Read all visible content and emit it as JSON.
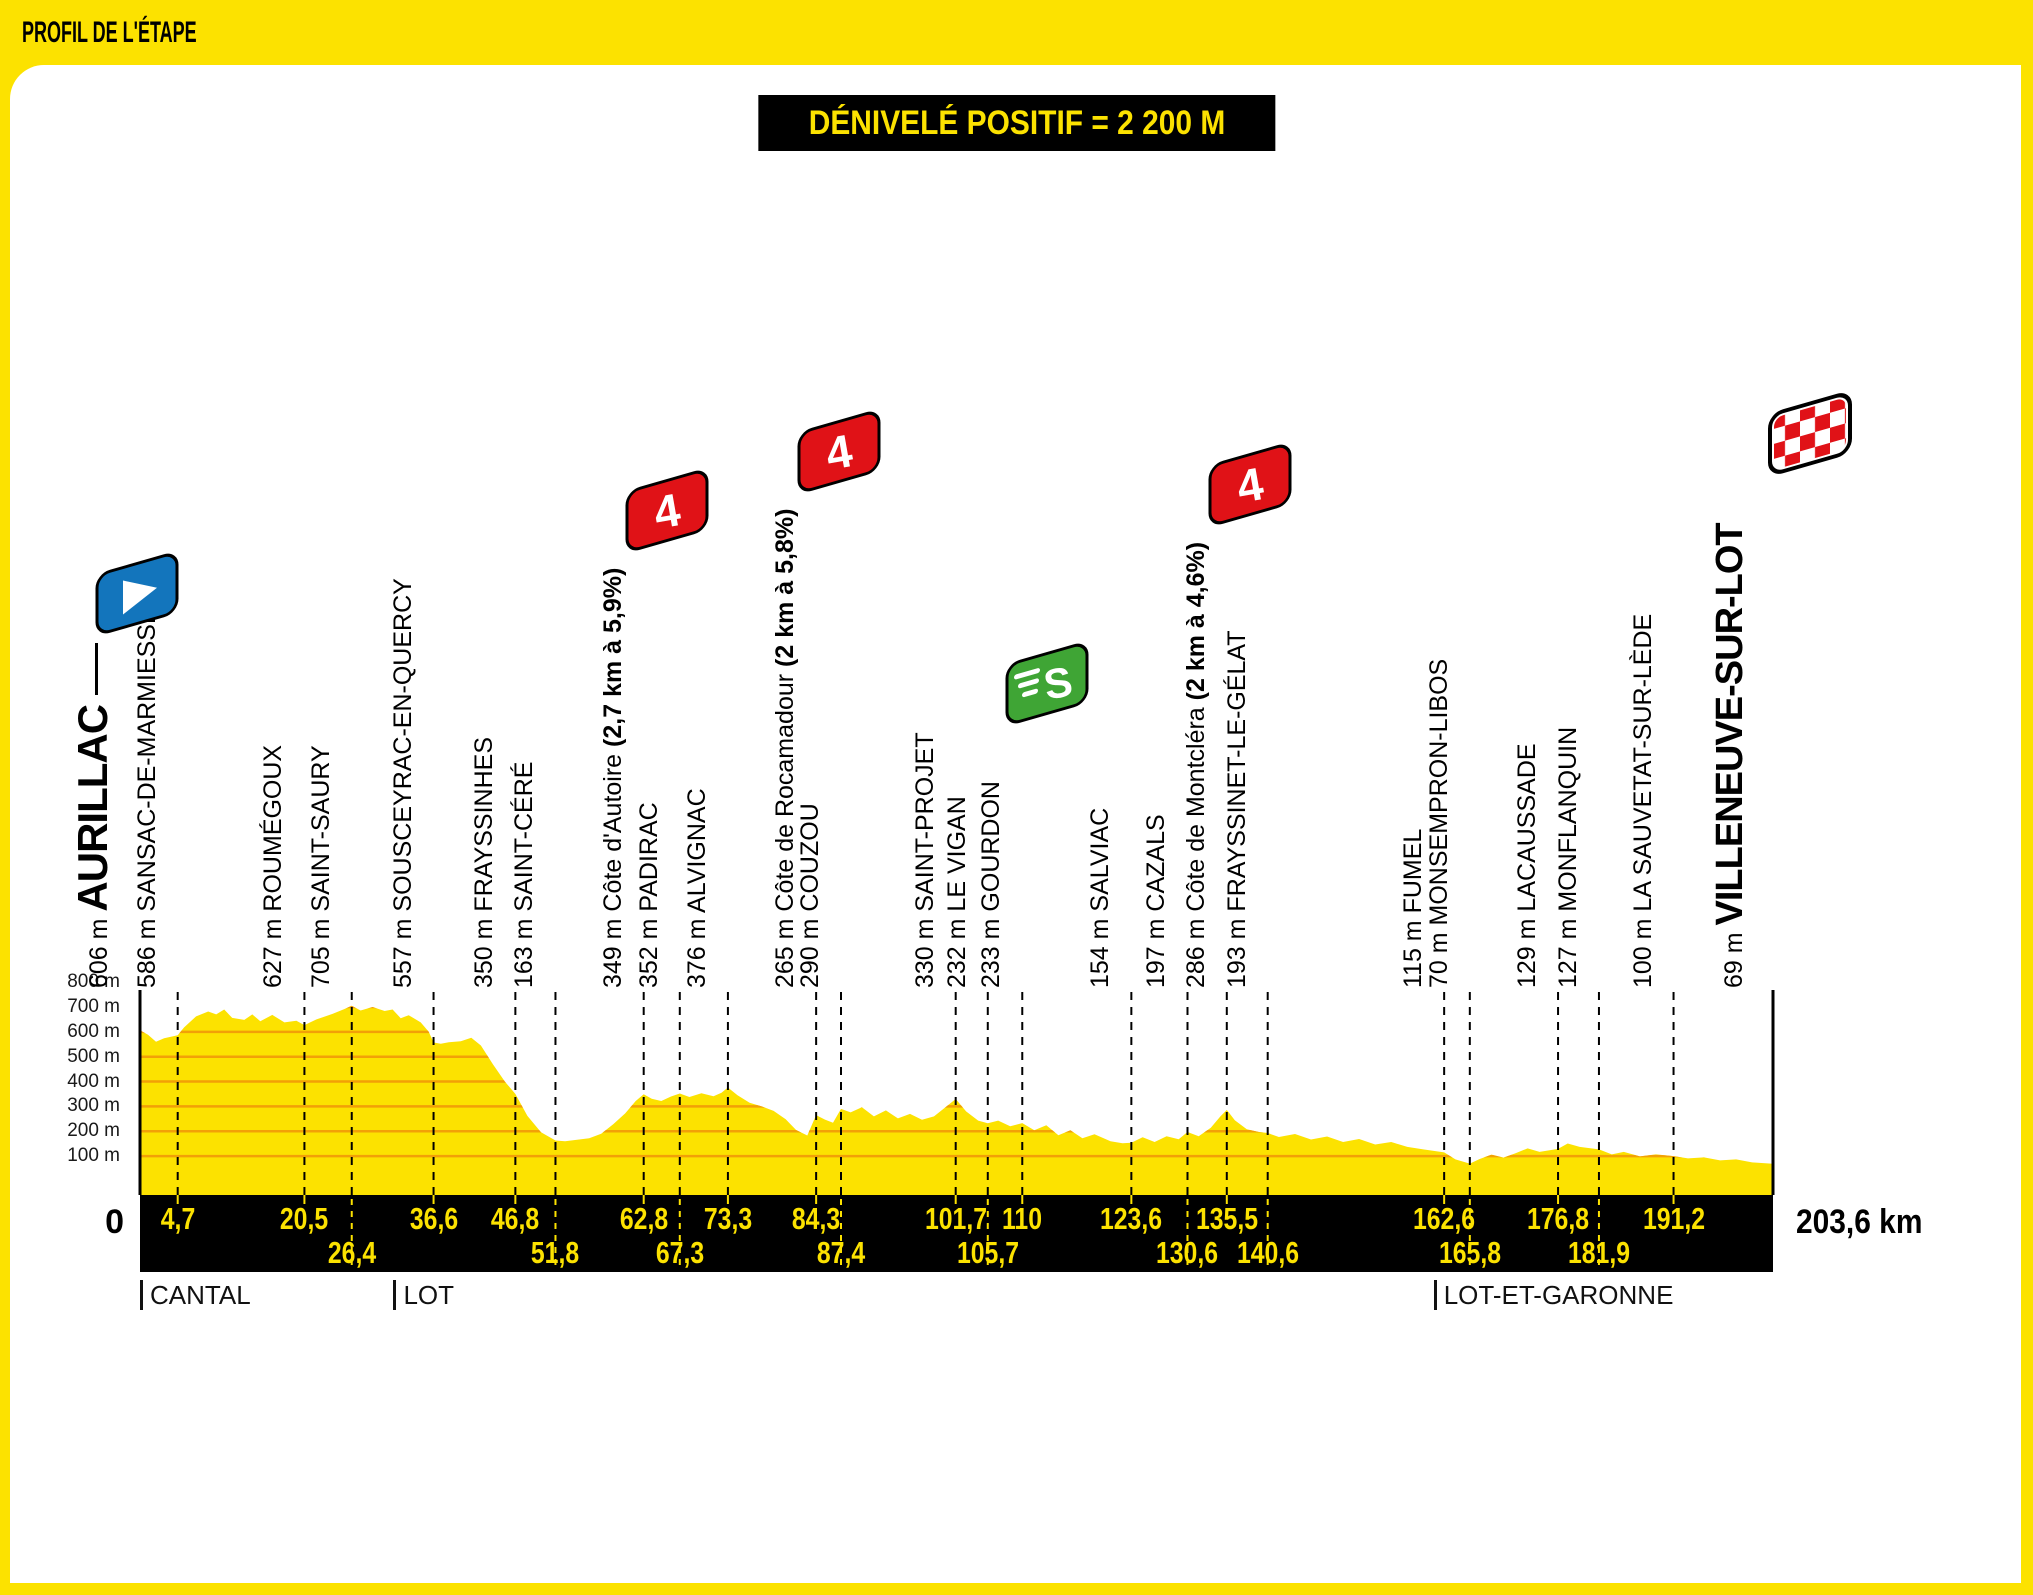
{
  "header": {
    "title": "PROFIL DE L'ÉTAPE"
  },
  "badge": {
    "label": "DÉNIVELÉ POSITIF = 2 200 M"
  },
  "chart_data": {
    "type": "area",
    "title": "PROFIL DE L'ÉTAPE",
    "x_start_label": "0",
    "x_end_label": "203,6 km",
    "total_km": 203.6,
    "grid": true,
    "colors": {
      "profile_yellow": "#FCE200",
      "gridline": "#F2A007",
      "flag_red": "#E01217",
      "flag_green": "#3FA535",
      "flag_blue": "#1375BC",
      "bar_black": "#000000"
    },
    "markers": {
      "cat4_text": "4",
      "sprint_text": "S"
    },
    "y_ticks": [
      {
        "m": 800,
        "label": "800 m"
      },
      {
        "m": 700,
        "label": "700 m"
      },
      {
        "m": 600,
        "label": "600 m"
      },
      {
        "m": 500,
        "label": "500 m"
      },
      {
        "m": 400,
        "label": "400 m"
      },
      {
        "m": 300,
        "label": "300 m"
      },
      {
        "m": 200,
        "label": "200 m"
      },
      {
        "m": 100,
        "label": "100 m"
      }
    ],
    "waypoints": [
      {
        "km": 0,
        "km_label": "",
        "row": 0,
        "elev_label": "606 m",
        "name": "AURILLAC",
        "style": "start",
        "marker": "start-flag"
      },
      {
        "km": 4.7,
        "km_label": "4,7",
        "row": 1,
        "elev_label": "586 m",
        "name": "SANSAC-DE-MARMIESSE"
      },
      {
        "km": 20.5,
        "km_label": "20,5",
        "row": 1,
        "elev_label": "627 m",
        "name": "ROUMÉGOUX"
      },
      {
        "km": 26.4,
        "km_label": "26,4",
        "row": 2,
        "elev_label": "705 m",
        "name": "SAINT-SAURY"
      },
      {
        "km": 36.6,
        "km_label": "36,6",
        "row": 1,
        "elev_label": "557 m",
        "name": "SOUSCEYRAC-EN-QUERCY"
      },
      {
        "km": 46.8,
        "km_label": "46,8",
        "row": 1,
        "elev_label": "350 m",
        "name": "FRAYSSINHES"
      },
      {
        "km": 51.8,
        "km_label": "51,8",
        "row": 2,
        "elev_label": "163 m",
        "name": "SAINT-CÉRÉ"
      },
      {
        "km": 62.8,
        "km_label": "62,8",
        "row": 1,
        "elev_label": "349 m",
        "name": "Côte d'Autoire",
        "grade_label": "(2,7 km à 5,9%)",
        "marker": "cat4-flag"
      },
      {
        "km": 67.3,
        "km_label": "67,3",
        "row": 2,
        "elev_label": "352 m",
        "name": "PADIRAC"
      },
      {
        "km": 73.3,
        "km_label": "73,3",
        "row": 1,
        "elev_label": "376 m",
        "name": "ALVIGNAC"
      },
      {
        "km": 84.3,
        "km_label": "84,3",
        "row": 1,
        "elev_label": "265 m",
        "name": "Côte de Rocamadour",
        "grade_label": "(2 km à 5,8%)",
        "marker": "cat4-flag"
      },
      {
        "km": 87.4,
        "km_label": "87,4",
        "row": 2,
        "elev_label": "290 m",
        "name": "COUZOU"
      },
      {
        "km": 101.7,
        "km_label": "101,7",
        "row": 1,
        "elev_label": "330 m",
        "name": "SAINT-PROJET"
      },
      {
        "km": 105.7,
        "km_label": "105,7",
        "row": 2,
        "elev_label": "232 m",
        "name": "LE VIGAN"
      },
      {
        "km": 110,
        "km_label": "110",
        "row": 1,
        "elev_label": "233 m",
        "name": "GOURDON",
        "marker": "sprint-flag"
      },
      {
        "km": 123.6,
        "km_label": "123,6",
        "row": 1,
        "elev_label": "154 m",
        "name": "SALVIAC"
      },
      {
        "km": 130.6,
        "km_label": "130,6",
        "row": 2,
        "elev_label": "197 m",
        "name": "CAZALS"
      },
      {
        "km": 135.5,
        "km_label": "135,5",
        "row": 1,
        "elev_label": "286 m",
        "name": "Côte de Montcléra",
        "grade_label": "(2 km à 4,6%)",
        "marker": "cat4-flag"
      },
      {
        "km": 140.6,
        "km_label": "140,6",
        "row": 2,
        "elev_label": "193 m",
        "name": "FRAYSSINET-LE-GÉLAT"
      },
      {
        "km": 162.6,
        "km_label": "162,6",
        "row": 1,
        "elev_label": "115 m",
        "name": "FUMEL"
      },
      {
        "km": 165.8,
        "km_label": "165,8",
        "row": 2,
        "elev_label": "70 m",
        "name": "MONSEMPRON-LIBOS"
      },
      {
        "km": 176.8,
        "km_label": "176,8",
        "row": 1,
        "elev_label": "129 m",
        "name": "LACAUSSADE"
      },
      {
        "km": 181.9,
        "km_label": "181,9",
        "row": 2,
        "elev_label": "127 m",
        "name": "MONFLANQUIN"
      },
      {
        "km": 191.2,
        "km_label": "191,2",
        "row": 1,
        "elev_label": "100 m",
        "name": "LA SAUVETAT-SUR-LÈDE"
      },
      {
        "km": 203.6,
        "km_label": "",
        "row": 0,
        "elev_label": "69 m",
        "name": "VILLENEUVE-SUR-LOT",
        "style": "finish",
        "marker": "finish-flag"
      }
    ],
    "departments": [
      {
        "label": "CANTAL",
        "km": 0
      },
      {
        "label": "LOT",
        "km": 31.6
      },
      {
        "label": "LOT-ET-GARONNE",
        "km": 161.3
      }
    ],
    "profile_km_m": [
      [
        0,
        606
      ],
      [
        1,
        588
      ],
      [
        2,
        560
      ],
      [
        3,
        574
      ],
      [
        4.7,
        586
      ],
      [
        5.5,
        618
      ],
      [
        7,
        662
      ],
      [
        8.5,
        682
      ],
      [
        9.5,
        670
      ],
      [
        10.5,
        690
      ],
      [
        11.5,
        656
      ],
      [
        13,
        648
      ],
      [
        14,
        670
      ],
      [
        15,
        643
      ],
      [
        16.5,
        668
      ],
      [
        18,
        638
      ],
      [
        19.5,
        645
      ],
      [
        20.5,
        627
      ],
      [
        22,
        650
      ],
      [
        24,
        672
      ],
      [
        25.5,
        692
      ],
      [
        26.4,
        705
      ],
      [
        27.5,
        686
      ],
      [
        29,
        700
      ],
      [
        30.5,
        684
      ],
      [
        31.5,
        690
      ],
      [
        32.5,
        655
      ],
      [
        33.5,
        667
      ],
      [
        35,
        638
      ],
      [
        36,
        600
      ],
      [
        36.6,
        557
      ],
      [
        37.5,
        552
      ],
      [
        38.5,
        558
      ],
      [
        40,
        562
      ],
      [
        41.3,
        576
      ],
      [
        42.5,
        545
      ],
      [
        44,
        470
      ],
      [
        45.5,
        400
      ],
      [
        46.8,
        350
      ],
      [
        48.3,
        262
      ],
      [
        50,
        196
      ],
      [
        51.8,
        163
      ],
      [
        53,
        160
      ],
      [
        54.5,
        166
      ],
      [
        56,
        172
      ],
      [
        57.5,
        190
      ],
      [
        59,
        228
      ],
      [
        60.5,
        272
      ],
      [
        61.8,
        322
      ],
      [
        62.8,
        349
      ],
      [
        63.8,
        331
      ],
      [
        65,
        322
      ],
      [
        66.2,
        340
      ],
      [
        67.3,
        352
      ],
      [
        68.5,
        338
      ],
      [
        70,
        353
      ],
      [
        71.5,
        341
      ],
      [
        72.5,
        355
      ],
      [
        73.3,
        376
      ],
      [
        74.5,
        345
      ],
      [
        76,
        315
      ],
      [
        77.5,
        300
      ],
      [
        79,
        282
      ],
      [
        80.5,
        248
      ],
      [
        81.8,
        205
      ],
      [
        83.2,
        183
      ],
      [
        84.3,
        265
      ],
      [
        85.4,
        247
      ],
      [
        86.4,
        234
      ],
      [
        87.4,
        290
      ],
      [
        88.6,
        276
      ],
      [
        90,
        297
      ],
      [
        91.5,
        260
      ],
      [
        93,
        284
      ],
      [
        94.5,
        252
      ],
      [
        96,
        270
      ],
      [
        97.5,
        246
      ],
      [
        99,
        260
      ],
      [
        100.4,
        296
      ],
      [
        101.7,
        330
      ],
      [
        103,
        280
      ],
      [
        104.5,
        243
      ],
      [
        105.7,
        232
      ],
      [
        107,
        243
      ],
      [
        108.5,
        220
      ],
      [
        110,
        233
      ],
      [
        111.5,
        204
      ],
      [
        113,
        224
      ],
      [
        114.5,
        184
      ],
      [
        116,
        204
      ],
      [
        117.5,
        172
      ],
      [
        119,
        188
      ],
      [
        121,
        160
      ],
      [
        122.5,
        152
      ],
      [
        123.6,
        154
      ],
      [
        125,
        176
      ],
      [
        126.5,
        157
      ],
      [
        128,
        180
      ],
      [
        129.5,
        168
      ],
      [
        130.6,
        197
      ],
      [
        132,
        180
      ],
      [
        133.5,
        214
      ],
      [
        134.7,
        260
      ],
      [
        135.5,
        286
      ],
      [
        136.5,
        244
      ],
      [
        138,
        208
      ],
      [
        139.5,
        197
      ],
      [
        140.6,
        193
      ],
      [
        142,
        177
      ],
      [
        144,
        189
      ],
      [
        146,
        167
      ],
      [
        148,
        179
      ],
      [
        150,
        157
      ],
      [
        152,
        169
      ],
      [
        154,
        147
      ],
      [
        156,
        157
      ],
      [
        158,
        137
      ],
      [
        160,
        127
      ],
      [
        162.6,
        115
      ],
      [
        164,
        87
      ],
      [
        165.8,
        70
      ],
      [
        167,
        88
      ],
      [
        168.5,
        106
      ],
      [
        170,
        94
      ],
      [
        171.5,
        112
      ],
      [
        173,
        131
      ],
      [
        174.5,
        117
      ],
      [
        176.8,
        129
      ],
      [
        178,
        151
      ],
      [
        179.5,
        137
      ],
      [
        181.9,
        127
      ],
      [
        183.5,
        107
      ],
      [
        185,
        117
      ],
      [
        187,
        99
      ],
      [
        189,
        107
      ],
      [
        191.2,
        100
      ],
      [
        193,
        91
      ],
      [
        195,
        95
      ],
      [
        197,
        83
      ],
      [
        199,
        87
      ],
      [
        201,
        75
      ],
      [
        203.6,
        69
      ]
    ]
  }
}
